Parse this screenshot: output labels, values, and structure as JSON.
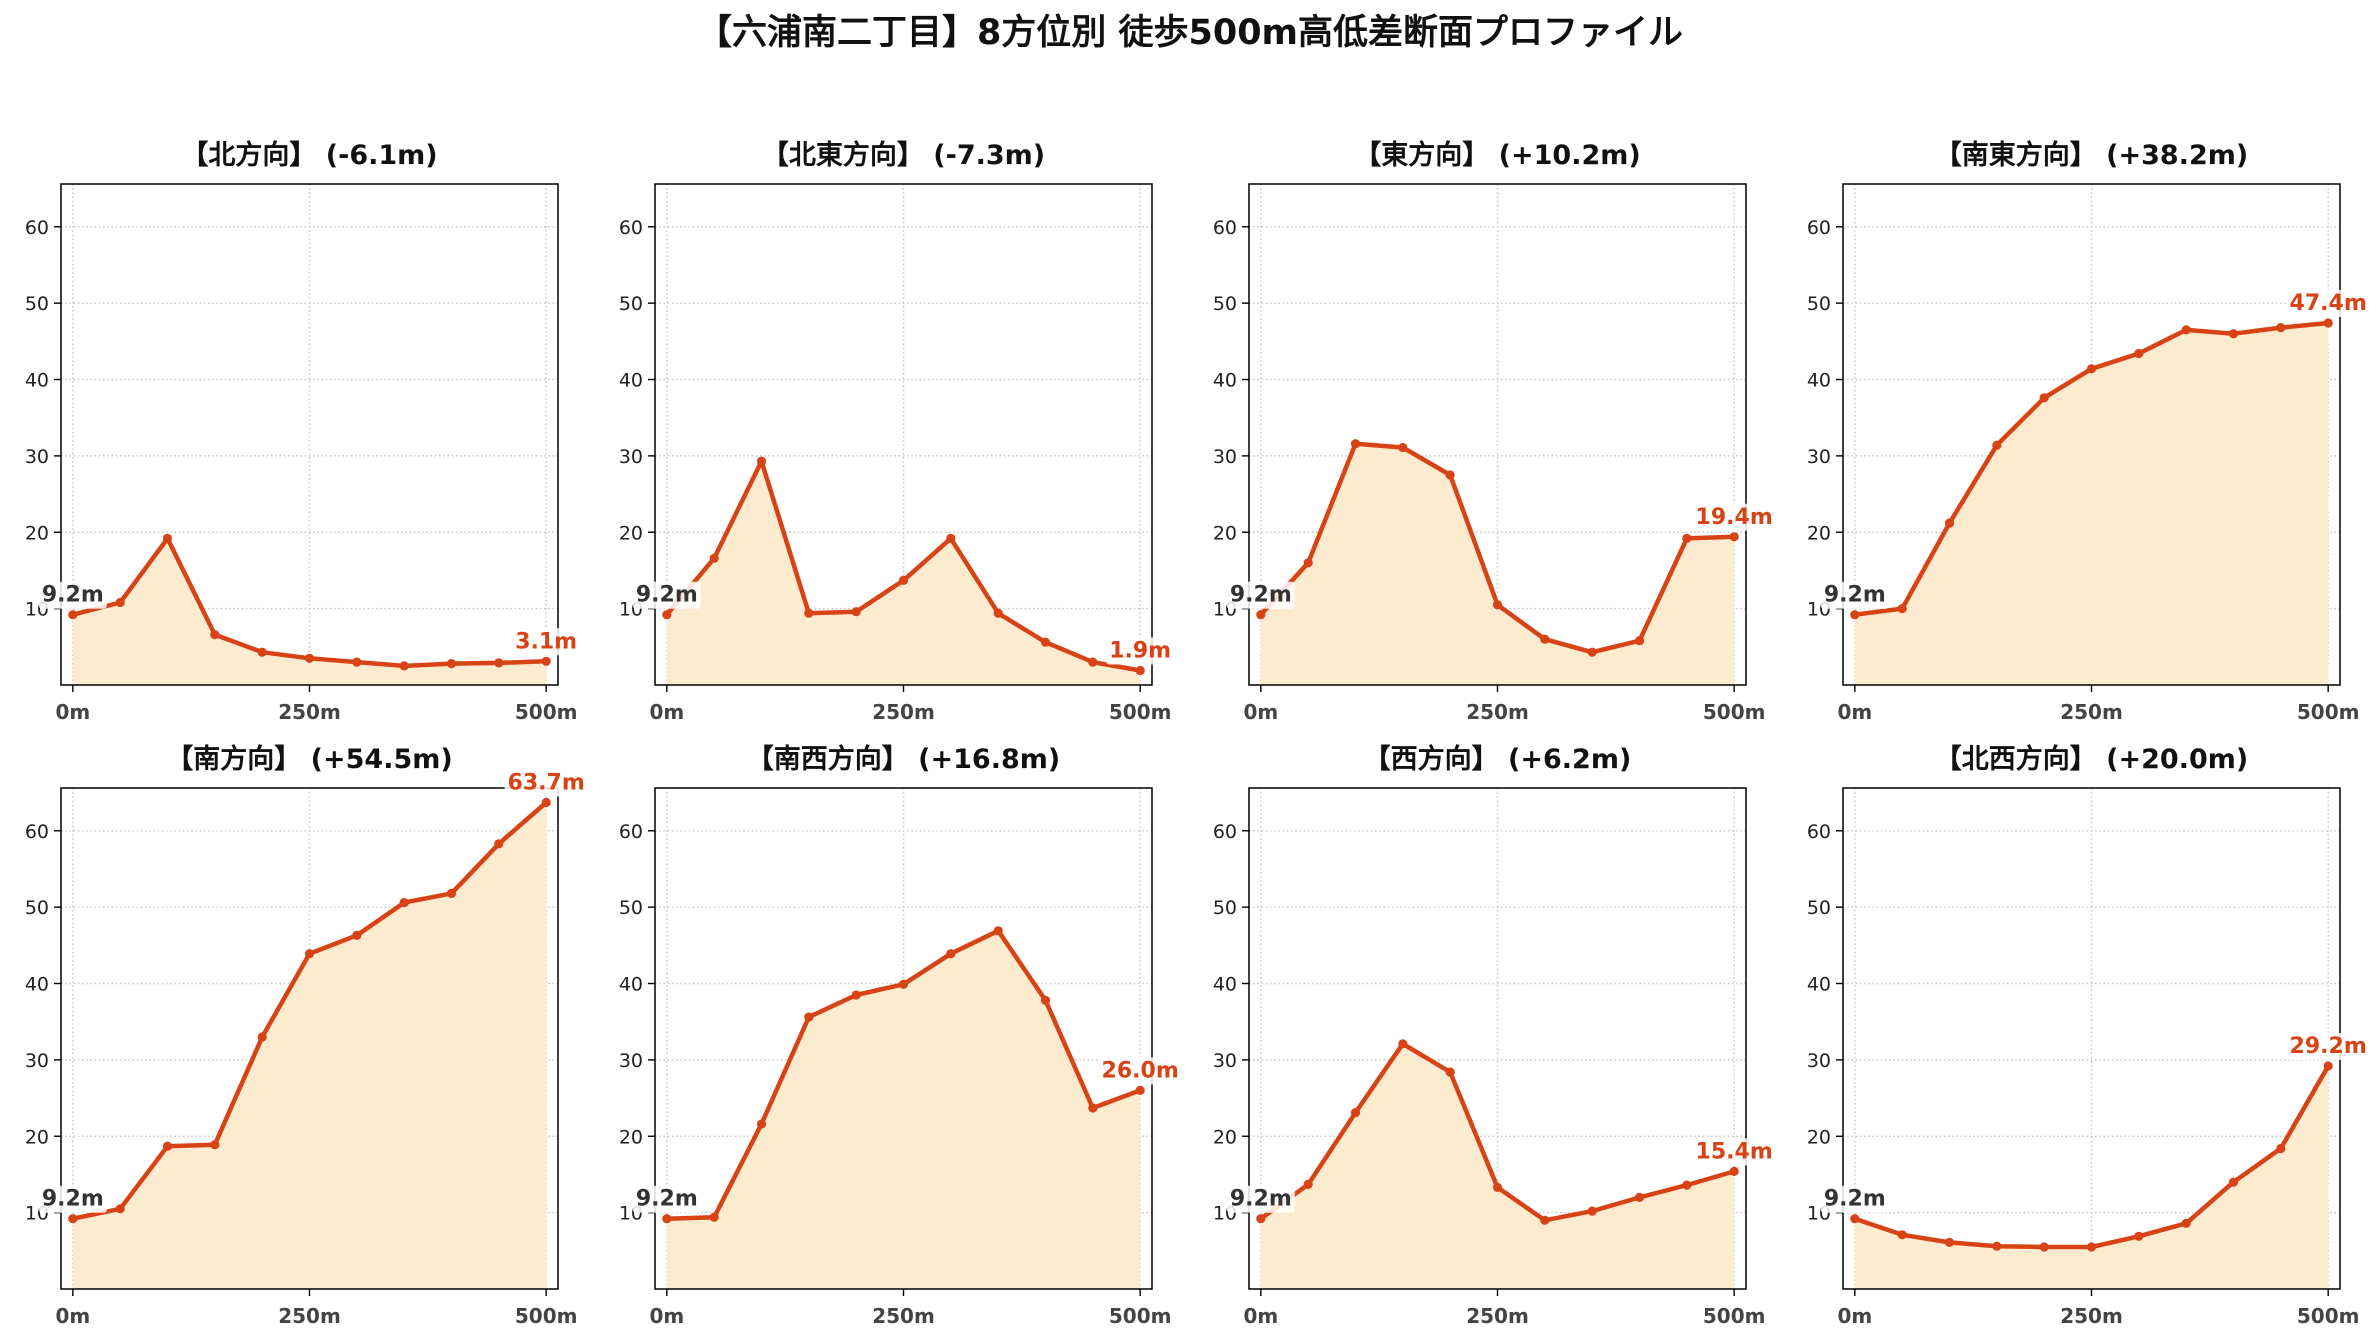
{
  "title": "【六浦南二丁目】8方位別 徒歩500m高低差断面プロファイル",
  "colors": {
    "line": "#d84315",
    "fill": "#fdebd0",
    "start_label": "#333333",
    "end_label": "#d84315",
    "grid": "#c8c8c8",
    "axes": "#000000"
  },
  "chart_data": [
    {
      "type": "area",
      "title": "【北方向】 (-6.1m)",
      "x": [
        0,
        50,
        100,
        150,
        200,
        250,
        300,
        350,
        400,
        450,
        500
      ],
      "values": [
        9.2,
        10.8,
        19.2,
        6.6,
        4.3,
        3.5,
        3.0,
        2.5,
        2.8,
        2.9,
        3.1
      ],
      "start_label": "9.2m",
      "end_label": "3.1m",
      "xticks": [
        0,
        250,
        500
      ],
      "xtick_labels": [
        "0m",
        "250m",
        "500m"
      ],
      "yticks": [
        10,
        20,
        30,
        40,
        50,
        60
      ],
      "ytick_labels": [
        "10",
        "20",
        "30",
        "40",
        "50",
        "60"
      ],
      "xlim": [
        -12.5,
        512.5
      ],
      "ylim": [
        0,
        65.6
      ],
      "grid": true
    },
    {
      "type": "area",
      "title": "【北東方向】 (-7.3m)",
      "x": [
        0,
        50,
        100,
        150,
        200,
        250,
        300,
        350,
        400,
        450,
        500
      ],
      "values": [
        9.2,
        16.6,
        29.3,
        9.4,
        9.6,
        13.7,
        19.2,
        9.4,
        5.6,
        3.0,
        1.9
      ],
      "start_label": "9.2m",
      "end_label": "1.9m",
      "xticks": [
        0,
        250,
        500
      ],
      "xtick_labels": [
        "0m",
        "250m",
        "500m"
      ],
      "yticks": [
        10,
        20,
        30,
        40,
        50,
        60
      ],
      "ytick_labels": [
        "10",
        "20",
        "30",
        "40",
        "50",
        "60"
      ],
      "xlim": [
        -12.5,
        512.5
      ],
      "ylim": [
        0,
        65.6
      ],
      "grid": true
    },
    {
      "type": "area",
      "title": "【東方向】 (+10.2m)",
      "x": [
        0,
        50,
        100,
        150,
        200,
        250,
        300,
        350,
        400,
        450,
        500
      ],
      "values": [
        9.2,
        16.0,
        31.6,
        31.1,
        27.5,
        10.5,
        6.0,
        4.3,
        5.8,
        19.2,
        19.4
      ],
      "start_label": "9.2m",
      "end_label": "19.4m",
      "xticks": [
        0,
        250,
        500
      ],
      "xtick_labels": [
        "0m",
        "250m",
        "500m"
      ],
      "yticks": [
        10,
        20,
        30,
        40,
        50,
        60
      ],
      "ytick_labels": [
        "10",
        "20",
        "30",
        "40",
        "50",
        "60"
      ],
      "xlim": [
        -12.5,
        512.5
      ],
      "ylim": [
        0,
        65.6
      ],
      "grid": true
    },
    {
      "type": "area",
      "title": "【南東方向】 (+38.2m)",
      "x": [
        0,
        50,
        100,
        150,
        200,
        250,
        300,
        350,
        400,
        450,
        500
      ],
      "values": [
        9.2,
        10.0,
        21.2,
        31.4,
        37.6,
        41.4,
        43.4,
        46.5,
        46.0,
        46.8,
        47.4
      ],
      "start_label": "9.2m",
      "end_label": "47.4m",
      "xticks": [
        0,
        250,
        500
      ],
      "xtick_labels": [
        "0m",
        "250m",
        "500m"
      ],
      "yticks": [
        10,
        20,
        30,
        40,
        50,
        60
      ],
      "ytick_labels": [
        "10",
        "20",
        "30",
        "40",
        "50",
        "60"
      ],
      "xlim": [
        -12.5,
        512.5
      ],
      "ylim": [
        0,
        65.6
      ],
      "grid": true
    },
    {
      "type": "area",
      "title": "【南方向】 (+54.5m)",
      "x": [
        0,
        50,
        100,
        150,
        200,
        250,
        300,
        350,
        400,
        450,
        500
      ],
      "values": [
        9.2,
        10.5,
        18.7,
        18.9,
        33.0,
        43.9,
        46.3,
        50.6,
        51.8,
        58.3,
        63.7
      ],
      "start_label": "9.2m",
      "end_label": "63.7m",
      "xticks": [
        0,
        250,
        500
      ],
      "xtick_labels": [
        "0m",
        "250m",
        "500m"
      ],
      "yticks": [
        10,
        20,
        30,
        40,
        50,
        60
      ],
      "ytick_labels": [
        "10",
        "20",
        "30",
        "40",
        "50",
        "60"
      ],
      "xlim": [
        -12.5,
        512.5
      ],
      "ylim": [
        0,
        65.6
      ],
      "grid": true
    },
    {
      "type": "area",
      "title": "【南西方向】 (+16.8m)",
      "x": [
        0,
        50,
        100,
        150,
        200,
        250,
        300,
        350,
        400,
        450,
        500
      ],
      "values": [
        9.2,
        9.4,
        21.6,
        35.6,
        38.5,
        39.9,
        43.9,
        46.9,
        37.8,
        23.7,
        26.0
      ],
      "start_label": "9.2m",
      "end_label": "26.0m",
      "xticks": [
        0,
        250,
        500
      ],
      "xtick_labels": [
        "0m",
        "250m",
        "500m"
      ],
      "yticks": [
        10,
        20,
        30,
        40,
        50,
        60
      ],
      "ytick_labels": [
        "10",
        "20",
        "30",
        "40",
        "50",
        "60"
      ],
      "xlim": [
        -12.5,
        512.5
      ],
      "ylim": [
        0,
        65.6
      ],
      "grid": true
    },
    {
      "type": "area",
      "title": "【西方向】 (+6.2m)",
      "x": [
        0,
        50,
        100,
        150,
        200,
        250,
        300,
        350,
        400,
        450,
        500
      ],
      "values": [
        9.2,
        13.7,
        23.1,
        32.1,
        28.4,
        13.3,
        9.0,
        10.2,
        12.0,
        13.6,
        15.4
      ],
      "start_label": "9.2m",
      "end_label": "15.4m",
      "xticks": [
        0,
        250,
        500
      ],
      "xtick_labels": [
        "0m",
        "250m",
        "500m"
      ],
      "yticks": [
        10,
        20,
        30,
        40,
        50,
        60
      ],
      "ytick_labels": [
        "10",
        "20",
        "30",
        "40",
        "50",
        "60"
      ],
      "xlim": [
        -12.5,
        512.5
      ],
      "ylim": [
        0,
        65.6
      ],
      "grid": true
    },
    {
      "type": "area",
      "title": "【北西方向】 (+20.0m)",
      "x": [
        0,
        50,
        100,
        150,
        200,
        250,
        300,
        350,
        400,
        450,
        500
      ],
      "values": [
        9.2,
        7.1,
        6.1,
        5.6,
        5.5,
        5.5,
        6.9,
        8.6,
        14.0,
        18.4,
        29.2
      ],
      "start_label": "9.2m",
      "end_label": "29.2m",
      "xticks": [
        0,
        250,
        500
      ],
      "xtick_labels": [
        "0m",
        "250m",
        "500m"
      ],
      "yticks": [
        10,
        20,
        30,
        40,
        50,
        60
      ],
      "ytick_labels": [
        "10",
        "20",
        "30",
        "40",
        "50",
        "60"
      ],
      "xlim": [
        -12.5,
        512.5
      ],
      "ylim": [
        0,
        65.6
      ],
      "grid": true
    }
  ]
}
